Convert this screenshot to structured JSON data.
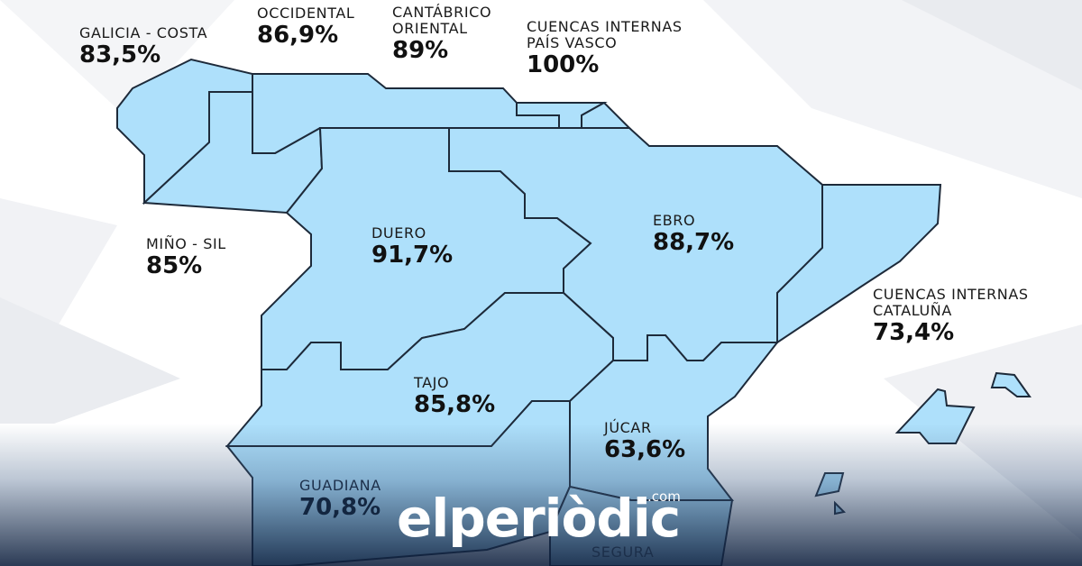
{
  "colors": {
    "basin_fill": "#aee0fb",
    "border": "#1d2a3a",
    "logo": "#ffffff",
    "bottom_fade": "#0e203e"
  },
  "basins": {
    "galicia_costa": {
      "name": "GALICIA - COSTA",
      "value": "83,5%"
    },
    "cantabrico_occidental": {
      "name": "OCCIDENTAL",
      "value": "86,9%"
    },
    "cantabrico_oriental": {
      "name": "CANTÁBRICO ORIENTAL",
      "value": "89%"
    },
    "pais_vasco": {
      "name": "CUENCAS INTERNAS PAÍS VASCO",
      "value": "100%"
    },
    "mino_sil": {
      "name": "MIÑO - SIL",
      "value": "85%"
    },
    "duero": {
      "name": "DUERO",
      "value": "91,7%"
    },
    "ebro": {
      "name": "EBRO",
      "value": "88,7%"
    },
    "cataluna": {
      "name": "CUENCAS INTERNAS CATALUÑA",
      "value": "73,4%"
    },
    "tajo": {
      "name": "TAJO",
      "value": "85,8%"
    },
    "jucar": {
      "name": "JÚCAR",
      "value": "63,6%"
    },
    "guadiana": {
      "name": "GUADIANA",
      "value": "70,8%"
    },
    "segura": {
      "name": "SEGURA"
    }
  },
  "logo": {
    "text": "elperiòdic",
    "domain": ".com"
  }
}
